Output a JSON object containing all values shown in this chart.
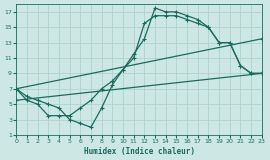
{
  "xlabel": "Humidex (Indice chaleur)",
  "bg_color": "#cde8e4",
  "grid_color": "#aacfca",
  "line_color": "#1a6b5e",
  "xlim": [
    0,
    23
  ],
  "ylim": [
    1,
    18
  ],
  "xticks": [
    0,
    1,
    2,
    3,
    4,
    5,
    6,
    7,
    8,
    9,
    10,
    11,
    12,
    13,
    14,
    15,
    16,
    17,
    18,
    19,
    20,
    21,
    22,
    23
  ],
  "yticks": [
    1,
    3,
    5,
    7,
    9,
    11,
    13,
    15,
    17
  ],
  "curve1_x": [
    0,
    1,
    2,
    3,
    4,
    5,
    6,
    7,
    8,
    9,
    10,
    11,
    12,
    13,
    14,
    15,
    16,
    17,
    18,
    19,
    20,
    21,
    22,
    23
  ],
  "curve1_y": [
    7.0,
    6.0,
    5.5,
    5.0,
    4.5,
    3.0,
    2.5,
    2.0,
    4.5,
    7.5,
    9.5,
    11.5,
    13.5,
    17.5,
    17.0,
    17.0,
    16.5,
    16.0,
    15.0,
    13.0,
    13.0,
    10.0,
    9.0,
    9.0
  ],
  "curve2_x": [
    0,
    1,
    2,
    3,
    4,
    5,
    6,
    7,
    8,
    9,
    10,
    11,
    12,
    13,
    14,
    15,
    16,
    17,
    18,
    19,
    20,
    21,
    22,
    23
  ],
  "curve2_y": [
    7.0,
    5.5,
    5.0,
    3.5,
    3.5,
    3.5,
    4.5,
    5.5,
    7.0,
    8.0,
    9.5,
    11.0,
    15.5,
    16.5,
    16.5,
    16.5,
    16.0,
    15.5,
    15.0,
    13.0,
    13.0,
    10.0,
    9.0,
    9.0
  ],
  "line1_x": [
    0,
    23
  ],
  "line1_y": [
    7.0,
    13.5
  ],
  "line2_x": [
    0,
    23
  ],
  "line2_y": [
    5.5,
    9.0
  ]
}
